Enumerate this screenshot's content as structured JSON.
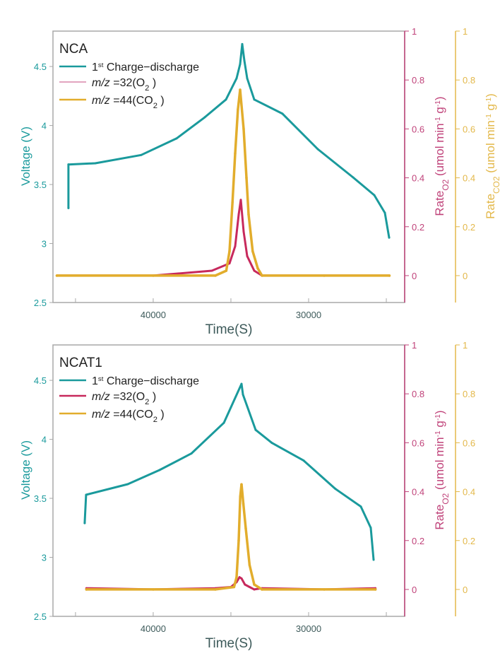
{
  "colors": {
    "voltage": "#1a9a9c",
    "o2": "#c7295c",
    "o2_axis": "#c0437a",
    "co2": "#e2ad2c",
    "co2_axis": "#e3b84a",
    "frame": "#a8a8a8",
    "text": "#222222",
    "xlabel": "#3d5a5a"
  },
  "chart_data": [
    {
      "type": "line",
      "title": "NCA",
      "xlabel": "Time(S)",
      "ylabel": "Voltage (V)",
      "y2label": {
        "main": "Rate",
        "sub": "O2",
        "unit": "(umol min",
        "exp": "-1",
        "unit2": " g",
        "exp2": "-1",
        "close": ")"
      },
      "y3label": {
        "main": "Rate",
        "sub": "CO2",
        "unit": "(umol min",
        "exp": "-1",
        "unit2": " g",
        "exp2": "-1",
        "close": ")"
      },
      "xlim": [
        46450,
        23820
      ],
      "x_reversed": true,
      "xticks": [
        40000,
        30000
      ],
      "xminor": [
        45000,
        35000,
        25000
      ],
      "ylim": [
        2.5,
        4.8
      ],
      "yticks": [
        "2.5",
        "3",
        "3.5",
        "4",
        "4.5"
      ],
      "y2lim": [
        -0.11,
        1
      ],
      "y2ticks": [
        "0",
        "0.2",
        "0.4",
        "0.6",
        "0.8",
        "1"
      ],
      "y3lim": [
        -0.11,
        1
      ],
      "y3ticks": [
        "0",
        "0.2",
        "0.4",
        "0.6",
        "0.8",
        "1"
      ],
      "legend": [
        {
          "label": "Charge−discharge",
          "prefix": "1",
          "sup": "st"
        },
        {
          "label": "m/z =32(O",
          "sub": "2",
          "close": " )"
        },
        {
          "label": "m/z =44(CO",
          "sub": "2",
          "close": " )"
        }
      ],
      "series": [
        {
          "name": "1st Charge−discharge",
          "axis": "left",
          "x": [
            45455,
            45455,
            43727,
            40773,
            38500,
            36682,
            35318,
            34636,
            34409,
            34273,
            34136,
            33955,
            33500,
            31682,
            29409,
            27136,
            25773,
            25091,
            24818
          ],
          "y": [
            3.3,
            3.67,
            3.68,
            3.75,
            3.89,
            4.07,
            4.22,
            4.4,
            4.52,
            4.69,
            4.55,
            4.4,
            4.22,
            4.1,
            3.8,
            3.56,
            3.41,
            3.26,
            3.05
          ]
        },
        {
          "name": "m/z =32(O2)",
          "axis": "right1",
          "x": [
            46200,
            40000,
            36227,
            35091,
            34727,
            34500,
            34364,
            34182,
            33955,
            33500,
            33000,
            29000,
            24800
          ],
          "y": [
            0,
            0,
            0.02,
            0.05,
            0.12,
            0.25,
            0.31,
            0.18,
            0.08,
            0.02,
            0,
            0,
            0
          ]
        },
        {
          "name": "m/z =44(CO2)",
          "axis": "right2",
          "x": [
            46200,
            40000,
            36000,
            35300,
            35091,
            34900,
            34727,
            34550,
            34409,
            34182,
            34000,
            33864,
            33600,
            33273,
            33000,
            29000,
            24800
          ],
          "y": [
            0,
            0,
            0,
            0.02,
            0.1,
            0.3,
            0.5,
            0.68,
            0.76,
            0.6,
            0.4,
            0.25,
            0.1,
            0.03,
            0,
            0,
            0
          ]
        }
      ]
    },
    {
      "type": "line",
      "title": "NCAT1",
      "xlabel": "Time(S)",
      "ylabel": "Voltage (V)",
      "y2label": {
        "main": "Rate",
        "sub": "O2",
        "unit": "(umol min",
        "exp": "-1",
        "unit2": " g",
        "exp2": "-1",
        "close": ")"
      },
      "xlim": [
        46450,
        23820
      ],
      "x_reversed": true,
      "xticks": [
        40000,
        30000
      ],
      "xminor": [
        45000,
        35000,
        25000
      ],
      "ylim": [
        2.5,
        4.8
      ],
      "yticks": [
        "2.5",
        "3",
        "3.5",
        "4",
        "4.5"
      ],
      "y2lim": [
        -0.11,
        1
      ],
      "y2ticks": [
        "0",
        "0.2",
        "0.4",
        "0.6",
        "0.8",
        "1"
      ],
      "y3lim": [
        -0.11,
        1
      ],
      "y3ticks": [
        "0",
        "0.2",
        "0.4",
        "0.6",
        "0.8",
        "1"
      ],
      "legend": [
        {
          "label": "Charge−discharge",
          "prefix": "1",
          "sup": "st"
        },
        {
          "label": "m/z =32(O",
          "sub": "2",
          "close": " )"
        },
        {
          "label": "m/z =44(CO",
          "sub": "2",
          "close": " )"
        }
      ],
      "series": [
        {
          "name": "1st Charge−discharge",
          "axis": "left",
          "x": [
            44409,
            44318,
            41636,
            39591,
            37545,
            35455,
            34318,
            34227,
            33409,
            32364,
            30318,
            28273,
            26636,
            26000,
            25818
          ],
          "y": [
            3.29,
            3.53,
            3.62,
            3.74,
            3.88,
            4.14,
            4.47,
            4.38,
            4.08,
            3.97,
            3.82,
            3.58,
            3.43,
            3.25,
            2.98
          ]
        },
        {
          "name": "m/z =32(O2)",
          "axis": "right1",
          "x": [
            44300,
            40000,
            36000,
            35000,
            34636,
            34450,
            34318,
            34100,
            33800,
            33500,
            33000,
            29000,
            25700
          ],
          "y": [
            0.005,
            0,
            0.005,
            0.01,
            0.03,
            0.05,
            0.045,
            0.02,
            0.01,
            0,
            0.005,
            0,
            0.005
          ]
        },
        {
          "name": "m/z =44(CO2)",
          "axis": "right2",
          "x": [
            44300,
            40000,
            36000,
            34800,
            34636,
            34500,
            34400,
            34318,
            34200,
            34045,
            33800,
            33500,
            33000,
            29000,
            25700
          ],
          "y": [
            0,
            0,
            0,
            0.01,
            0.05,
            0.2,
            0.38,
            0.43,
            0.35,
            0.25,
            0.1,
            0.02,
            0,
            0,
            0
          ]
        }
      ]
    }
  ]
}
